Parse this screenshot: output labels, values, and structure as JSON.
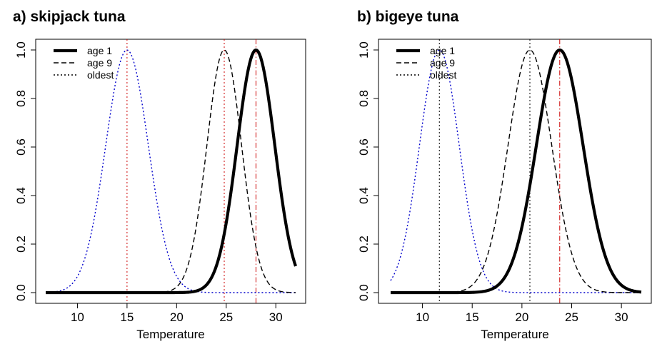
{
  "chart_data": [
    {
      "type": "line",
      "title": "a) skipjack tuna",
      "xlabel": "Temperature",
      "ylabel": "",
      "xlim": [
        6.5,
        32.5
      ],
      "ylim": [
        0,
        1
      ],
      "xticks": [
        10,
        15,
        20,
        25,
        30
      ],
      "yticks": [
        0.0,
        0.2,
        0.4,
        0.6,
        0.8,
        1.0
      ],
      "xtick_labels": [
        "10",
        "15",
        "20",
        "25",
        "30"
      ],
      "ytick_labels": [
        "0.0",
        "0.2",
        "0.4",
        "0.6",
        "0.8",
        "1.0"
      ],
      "curve_x_range": [
        6.8,
        32.0
      ],
      "legend": {
        "position": "top-left",
        "entries": [
          "age 1",
          "age 9",
          "oldest"
        ]
      },
      "series": [
        {
          "name": "age 1",
          "style": "solid-thick",
          "color": "#000000",
          "peak_x": 28.0,
          "sd": 1.9,
          "vline": {
            "x": 28.0,
            "style": "dashdot",
            "color": "#cc0000"
          }
        },
        {
          "name": "age 9",
          "style": "dashed",
          "color": "#000000",
          "peak_x": 24.8,
          "sd": 1.75,
          "vline": {
            "x": 24.8,
            "style": "dotted",
            "color": "#cc0000"
          }
        },
        {
          "name": "oldest",
          "style": "dotted",
          "color": "#0000cc",
          "peak_x": 15.0,
          "sd": 2.15,
          "vline": {
            "x": 15.0,
            "style": "dotted",
            "color": "#cc0000"
          }
        }
      ]
    },
    {
      "type": "line",
      "title": "b) bigeye tuna",
      "xlabel": "Temperature",
      "ylabel": "",
      "xlim": [
        6.5,
        32.5
      ],
      "ylim": [
        0,
        1
      ],
      "xticks": [
        10,
        15,
        20,
        25,
        30
      ],
      "yticks": [
        0.0,
        0.2,
        0.4,
        0.6,
        0.8,
        1.0
      ],
      "xtick_labels": [
        "10",
        "15",
        "20",
        "25",
        "30"
      ],
      "ytick_labels": [
        "0.0",
        "0.2",
        "0.4",
        "0.6",
        "0.8",
        "1.0"
      ],
      "curve_x_range": [
        6.8,
        32.0
      ],
      "legend": {
        "position": "top-left",
        "entries": [
          "age 1",
          "age 9",
          "oldest"
        ]
      },
      "series": [
        {
          "name": "age 1",
          "style": "solid-thick",
          "color": "#000000",
          "peak_x": 23.8,
          "sd": 2.35,
          "vline": {
            "x": 23.8,
            "style": "dashdot",
            "color": "#cc0000"
          }
        },
        {
          "name": "age 9",
          "style": "dashed",
          "color": "#000000",
          "peak_x": 20.8,
          "sd": 2.2,
          "vline": {
            "x": 20.8,
            "style": "dotted",
            "color": "#000000"
          }
        },
        {
          "name": "oldest",
          "style": "dotted",
          "color": "#0000cc",
          "peak_x": 11.7,
          "sd": 2.0,
          "vline": {
            "x": 11.7,
            "style": "dotted",
            "color": "#000000"
          }
        }
      ]
    }
  ]
}
